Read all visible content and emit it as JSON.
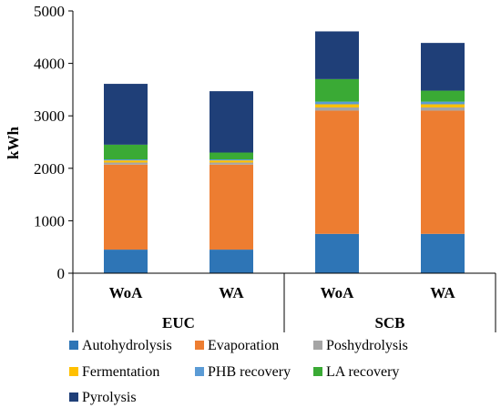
{
  "chart_data": {
    "type": "bar",
    "stacked": true,
    "ylabel": "kWh",
    "ylim": [
      0,
      5000
    ],
    "yticks": [
      "0",
      "1000",
      "2000",
      "3000",
      "4000",
      "5000"
    ],
    "categories": [
      "WoA",
      "WA",
      "WoA",
      "WA"
    ],
    "groups": [
      {
        "label": "EUC",
        "members": [
          0,
          1
        ]
      },
      {
        "label": "SCB",
        "members": [
          2,
          3
        ]
      }
    ],
    "legend_position": "bottom",
    "series": [
      {
        "name": "Autohydrolysis",
        "color": "#2e75b6",
        "values": [
          450,
          450,
          750,
          750
        ]
      },
      {
        "name": "Evaporation",
        "color": "#ed7d31",
        "values": [
          1620,
          1620,
          2350,
          2350
        ]
      },
      {
        "name": "Poshydrolysis",
        "color": "#a5a5a5",
        "values": [
          40,
          40,
          60,
          60
        ]
      },
      {
        "name": "Fermentation",
        "color": "#ffc000",
        "values": [
          40,
          40,
          60,
          60
        ]
      },
      {
        "name": "PHB recovery",
        "color": "#5b9bd5",
        "values": [
          20,
          20,
          50,
          50
        ]
      },
      {
        "name": "LA recovery",
        "color": "#3aaa35",
        "values": [
          280,
          130,
          430,
          210
        ]
      },
      {
        "name": "Pyrolysis",
        "color": "#1f3f78",
        "values": [
          1160,
          1170,
          910,
          910
        ]
      }
    ]
  }
}
